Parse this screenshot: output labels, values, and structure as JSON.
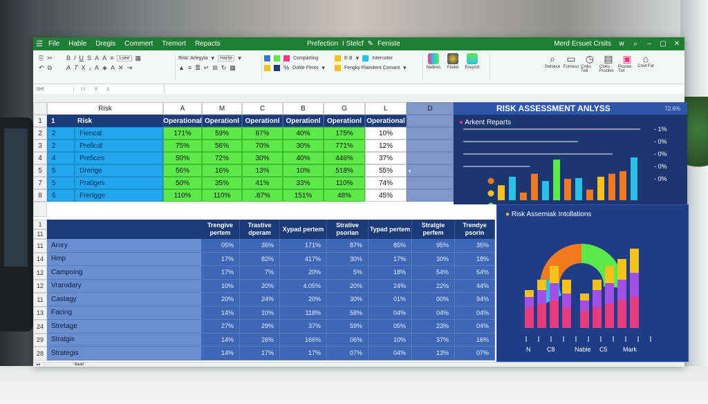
{
  "menu": [
    "File",
    "Hable",
    "Dregis",
    "Commert",
    "Tremort",
    "Repacts"
  ],
  "title_center": [
    "Prefection",
    "I Stelcf",
    "Feniste"
  ],
  "title_right": "Merd Ersuet Crsits",
  "ribbon": {
    "font_name": "Lsee",
    "risk_label": "Risk: Arlegyla",
    "style_box": "Harlie",
    "conditional": "Comparting",
    "cell_label": "E·B",
    "interactor": "Intercotor",
    "dollar_fixed": "Doltie Flrnts",
    "formula_comment": "Fengky Flamitent Comant",
    "analysis": [
      "Nalbres",
      "Feulet",
      "Envyrizt"
    ],
    "right_tools": [
      "Swtsece",
      "Fonsess",
      "Cloks Twil",
      "Cloks Pcstiles",
      "Pcurea Twr",
      "Cred Fat"
    ]
  },
  "formula_bar": {
    "name_box": "SHI",
    "fx": [
      "Lt",
      "8",
      "£"
    ]
  },
  "table1": {
    "corner_label": "Risk",
    "col_letters": [
      "A",
      "M",
      "C",
      "B",
      "G",
      "L"
    ],
    "d_header": "D",
    "header_row": {
      "num": "1",
      "label": "Risk",
      "values": [
        "Operational",
        "Operationl",
        "Operationl",
        "Operationl",
        "Operationl",
        "Operational"
      ]
    },
    "rows": [
      {
        "rownum": "2",
        "idx": "2",
        "name": "Fiencal",
        "values": [
          "171%",
          "59%",
          "87%",
          "40%",
          "175%",
          "10%"
        ]
      },
      {
        "rownum": "3",
        "idx": "2",
        "name": "Prefical",
        "values": [
          "75%",
          "56%",
          "70%",
          "30%",
          "771%",
          "12%"
        ]
      },
      {
        "rownum": "4",
        "idx": "4",
        "name": "Prefices",
        "values": [
          "50%",
          "72%",
          "30%",
          "40%",
          "446%",
          "37%"
        ]
      },
      {
        "rownum": "5",
        "idx": "5",
        "name": "Drerige",
        "values": [
          "56%",
          "16%",
          "13%",
          "10%",
          "518%",
          "55%"
        ]
      },
      {
        "rownum": "7",
        "idx": "5",
        "name": "Pratiges",
        "values": [
          "50%",
          "35%",
          "41%",
          "33%",
          "110%",
          "74%"
        ]
      },
      {
        "rownum": "8",
        "idx": "6",
        "name": "Frerigge",
        "values": [
          "110%",
          "110%",
          ".87%",
          "151%",
          "48%",
          "45%"
        ]
      }
    ]
  },
  "panel1": {
    "title": "RISK ASSESSMENT ANLYSS",
    "badge": "72.6%",
    "subtitle": "Arkent Reparts",
    "axis_labels": [
      "- 1%",
      "- 0%",
      "- 0%",
      "- 0%",
      "- 0%"
    ],
    "bars": [
      {
        "value": 0.35,
        "color": "#f4c21a"
      },
      {
        "value": 0.55,
        "color": "#29c3e8"
      },
      {
        "value": 0.18,
        "color": "#f47a20"
      },
      {
        "value": 0.62,
        "color": "#f47a20"
      },
      {
        "value": 0.45,
        "color": "#29c3e8"
      },
      {
        "value": 0.95,
        "color": "#5ee94b"
      },
      {
        "value": 0.5,
        "color": "#f47a20"
      },
      {
        "value": 0.52,
        "color": "#29c3e8"
      },
      {
        "value": 0.25,
        "color": "#f47a20"
      },
      {
        "value": 0.55,
        "color": "#f4c21a"
      },
      {
        "value": 0.62,
        "color": "#f47a20"
      },
      {
        "value": 0.68,
        "color": "#f47a20"
      },
      {
        "value": 1.0,
        "color": "#29c3e8"
      }
    ],
    "markers": [
      "#f47a20",
      "#f4c21a",
      "#5ee94b"
    ]
  },
  "table2": {
    "rownums_top": [
      "1",
      "11"
    ],
    "headers": [
      "Trengive pertem",
      "Trastive dperam",
      "Xypad pertem",
      "Strative psorian",
      "Typad pertem",
      "Stratgie perfem",
      "Trendye psorin"
    ],
    "rows": [
      {
        "rownum": "11",
        "name": "Arory",
        "values": [
          "05%",
          "36%",
          "171%",
          "87%",
          "85%",
          "95%",
          "35%"
        ]
      },
      {
        "rownum": "14",
        "name": "Hmp",
        "values": [
          "17%",
          "82%",
          "417%",
          "30%",
          "17%",
          "30%",
          "18%"
        ]
      },
      {
        "rownum": "12",
        "name": "Campoing",
        "values": [
          "17%",
          "7%",
          "20%",
          "5%",
          "18%",
          "54%",
          "54%"
        ]
      },
      {
        "rownum": "12",
        "name": "Vrarodary",
        "values": [
          "10%",
          "20%",
          "4.05%",
          "20%",
          "24%",
          "22%",
          "44%"
        ]
      },
      {
        "rownum": "11",
        "name": "Castagy",
        "values": [
          "20%",
          "24%",
          "20%",
          "30%",
          "01%",
          "00%",
          "94%"
        ]
      },
      {
        "rownum": "13",
        "name": "Facing",
        "values": [
          "14%",
          "10%",
          "118%",
          "58%",
          "04%",
          "04%",
          "04%"
        ]
      },
      {
        "rownum": "24",
        "name": "Stretage",
        "values": [
          "27%",
          "29%",
          "37%",
          "59%",
          "05%",
          "23%",
          "04%"
        ]
      },
      {
        "rownum": "29",
        "name": "Stratgis",
        "values": [
          "14%",
          "26%",
          "166%",
          "06%",
          "10%",
          "37%",
          "16%"
        ]
      },
      {
        "rownum": "28",
        "name": "Strategis",
        "values": [
          "14%",
          "17%",
          "17%",
          "07%",
          "04%",
          "13%",
          "07%"
        ]
      }
    ]
  },
  "panel2": {
    "title": "Risk Assemiak Intollations",
    "xlabels": [
      "N",
      "C8",
      "Nable",
      "C5",
      "Mark"
    ],
    "stacks": [
      [
        0.3,
        0.15,
        0.1
      ],
      [
        0.35,
        0.2,
        0.15
      ],
      [
        0.4,
        0.25,
        0.25
      ],
      [
        0.3,
        0.2,
        0.2
      ],
      [
        0.25,
        0.15,
        0.1
      ],
      [
        0.3,
        0.25,
        0.15
      ],
      [
        0.35,
        0.3,
        0.25
      ],
      [
        0.4,
        0.3,
        0.3
      ],
      [
        0.45,
        0.35,
        0.35
      ]
    ],
    "stack_colors": [
      "#e93b7c",
      "#a34fe6",
      "#f4c21a"
    ],
    "arc_colors": [
      "#29c3e8",
      "#f47a20",
      "#5ee94b"
    ]
  },
  "sheet_tab": "Rasld"
}
